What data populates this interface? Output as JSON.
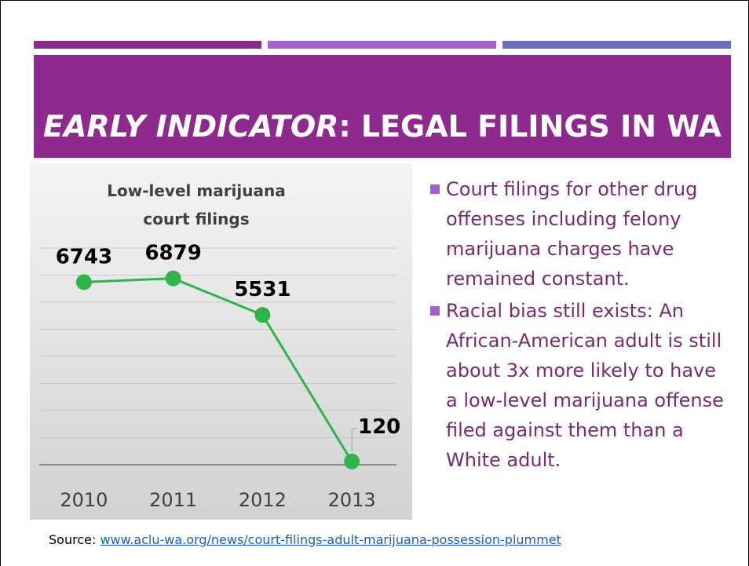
{
  "slide": {
    "title_italic": "EARLY INDICATOR",
    "title_rest": ": LEGAL FILINGS IN WA",
    "bullets": [
      "Court filings for other drug offenses including felony marijuana charges have remained constant.",
      "Racial bias still exists: An African-American adult is still about 3x more likely to have a low-level marijuana offense filed against them than a White adult."
    ],
    "source_label": "Source:",
    "source_url": "www.aclu-wa.org/news/court-filings-adult-marijuana-possession-plummet"
  },
  "chart_data": {
    "type": "line",
    "title": "Low-level marijuana court filings",
    "categories": [
      "2010",
      "2011",
      "2012",
      "2013"
    ],
    "values": [
      6743,
      6879,
      5531,
      120
    ],
    "color": "#2fb44b",
    "ylim": [
      0,
      8000
    ],
    "yticks": [
      0,
      1000,
      2000,
      3000,
      4000,
      5000,
      6000,
      7000,
      8000
    ],
    "grid": true
  }
}
